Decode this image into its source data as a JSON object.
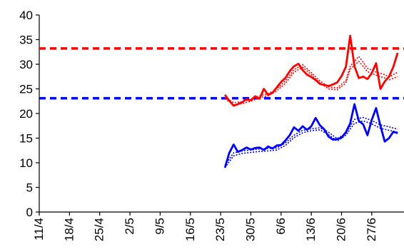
{
  "chart_data": {
    "type": "line",
    "title": "",
    "xlabel": "",
    "ylabel": "",
    "ylim": [
      0,
      40
    ],
    "yticks": [
      0,
      5,
      10,
      15,
      20,
      25,
      30,
      35,
      40
    ],
    "xlim": [
      "2024-04-11",
      "2024-07-03"
    ],
    "xticks": [
      "11/4",
      "18/4",
      "25/4",
      "2/5",
      "9/5",
      "16/5",
      "23/5",
      "30/5",
      "6/6",
      "13/6",
      "20/6",
      "27/6"
    ],
    "xtick_dates": [
      "2024-04-11",
      "2024-04-18",
      "2024-04-25",
      "2024-05-02",
      "2024-05-09",
      "2024-05-16",
      "2024-05-23",
      "2024-05-30",
      "2024-06-06",
      "2024-06-13",
      "2024-06-20",
      "2024-06-27"
    ],
    "grid": false,
    "legend": "none",
    "reference_lines": [
      {
        "y": 33.2,
        "color": "#ff0000",
        "style": "dashed"
      },
      {
        "y": 23.1,
        "color": "#0000ff",
        "style": "dashed"
      }
    ],
    "series": [
      {
        "color": "#ff0000",
        "style": "solid",
        "x": [
          "2024-05-24",
          "2024-05-25",
          "2024-05-26",
          "2024-05-27",
          "2024-05-28",
          "2024-05-29",
          "2024-05-30",
          "2024-05-31",
          "2024-06-01",
          "2024-06-02",
          "2024-06-03",
          "2024-06-04",
          "2024-06-05",
          "2024-06-06",
          "2024-06-07",
          "2024-06-08",
          "2024-06-09",
          "2024-06-10",
          "2024-06-11",
          "2024-06-12",
          "2024-06-13",
          "2024-06-14",
          "2024-06-15",
          "2024-06-16",
          "2024-06-17",
          "2024-06-18",
          "2024-06-19",
          "2024-06-20",
          "2024-06-21",
          "2024-06-22",
          "2024-06-23",
          "2024-06-24",
          "2024-06-25",
          "2024-06-26",
          "2024-06-27",
          "2024-06-28",
          "2024-06-29",
          "2024-06-30",
          "2024-07-01",
          "2024-07-02",
          "2024-07-03"
        ],
        "values": [
          23.8,
          22.6,
          21.6,
          21.9,
          22.3,
          22.9,
          22.7,
          23.5,
          23.0,
          25.0,
          23.8,
          24.2,
          25.3,
          26.4,
          27.2,
          28.6,
          29.6,
          30.1,
          28.8,
          27.9,
          27.4,
          26.8,
          26.0,
          25.8,
          25.6,
          25.9,
          26.3,
          27.6,
          29.5,
          35.8,
          29.6,
          27.2,
          27.5,
          27.0,
          28.2,
          30.2,
          25.0,
          26.5,
          27.5,
          29.5,
          32.3
        ]
      },
      {
        "color": "#ff0000",
        "style": "dotted",
        "x": [
          "2024-05-24",
          "2024-05-26",
          "2024-05-28",
          "2024-05-30",
          "2024-06-01",
          "2024-06-03",
          "2024-06-05",
          "2024-06-07",
          "2024-06-09",
          "2024-06-11",
          "2024-06-13",
          "2024-06-15",
          "2024-06-17",
          "2024-06-19",
          "2024-06-21",
          "2024-06-22",
          "2024-06-24",
          "2024-06-26",
          "2024-06-28",
          "2024-06-30",
          "2024-07-01",
          "2024-07-03"
        ],
        "values": [
          23.3,
          22.2,
          22.4,
          22.9,
          23.6,
          24.0,
          25.0,
          26.6,
          28.9,
          29.9,
          28.3,
          26.6,
          25.4,
          25.2,
          26.7,
          29.6,
          31.6,
          29.2,
          28.4,
          27.9,
          27.4,
          28.4
        ]
      },
      {
        "color": "#ff0000",
        "style": "dotted",
        "x": [
          "2024-05-24",
          "2024-05-26",
          "2024-05-28",
          "2024-05-30",
          "2024-06-01",
          "2024-06-03",
          "2024-06-05",
          "2024-06-07",
          "2024-06-09",
          "2024-06-11",
          "2024-06-13",
          "2024-06-15",
          "2024-06-17",
          "2024-06-19",
          "2024-06-21",
          "2024-06-22",
          "2024-06-24",
          "2024-06-26",
          "2024-06-28",
          "2024-06-30",
          "2024-07-01",
          "2024-07-03"
        ],
        "values": [
          23.0,
          21.8,
          22.0,
          22.5,
          23.2,
          23.6,
          24.6,
          26.1,
          28.4,
          29.4,
          27.9,
          26.2,
          25.0,
          24.8,
          26.2,
          29.0,
          30.6,
          28.5,
          27.8,
          27.2,
          26.8,
          27.5
        ]
      },
      {
        "color": "#0000ff",
        "style": "solid",
        "x": [
          "2024-05-24",
          "2024-05-25",
          "2024-05-26",
          "2024-05-27",
          "2024-05-28",
          "2024-05-29",
          "2024-05-30",
          "2024-05-31",
          "2024-06-01",
          "2024-06-02",
          "2024-06-03",
          "2024-06-04",
          "2024-06-05",
          "2024-06-06",
          "2024-06-07",
          "2024-06-08",
          "2024-06-09",
          "2024-06-10",
          "2024-06-11",
          "2024-06-12",
          "2024-06-13",
          "2024-06-14",
          "2024-06-15",
          "2024-06-16",
          "2024-06-17",
          "2024-06-18",
          "2024-06-19",
          "2024-06-20",
          "2024-06-21",
          "2024-06-22",
          "2024-06-23",
          "2024-06-24",
          "2024-06-25",
          "2024-06-26",
          "2024-06-27",
          "2024-06-28",
          "2024-06-29",
          "2024-06-30",
          "2024-07-01",
          "2024-07-02",
          "2024-07-03"
        ],
        "values": [
          9.0,
          12.0,
          13.7,
          12.2,
          12.6,
          13.1,
          12.7,
          13.0,
          13.1,
          12.6,
          13.3,
          12.9,
          13.5,
          13.6,
          14.5,
          15.6,
          17.2,
          16.5,
          17.4,
          16.7,
          17.4,
          19.1,
          17.6,
          16.8,
          15.3,
          14.7,
          14.8,
          15.1,
          16.2,
          18.0,
          21.9,
          18.5,
          17.8,
          15.6,
          18.7,
          21.1,
          17.5,
          14.3,
          15.0,
          16.3,
          16.0
        ]
      },
      {
        "color": "#0000ff",
        "style": "dotted",
        "x": [
          "2024-05-24",
          "2024-05-26",
          "2024-05-28",
          "2024-05-30",
          "2024-06-01",
          "2024-06-03",
          "2024-06-05",
          "2024-06-07",
          "2024-06-09",
          "2024-06-11",
          "2024-06-13",
          "2024-06-15",
          "2024-06-17",
          "2024-06-19",
          "2024-06-21",
          "2024-06-23",
          "2024-06-25",
          "2024-06-27",
          "2024-06-29",
          "2024-07-01",
          "2024-07-03"
        ],
        "values": [
          9.5,
          12.0,
          12.4,
          12.6,
          12.8,
          12.9,
          13.0,
          14.0,
          15.6,
          16.6,
          16.9,
          17.1,
          16.2,
          14.9,
          16.0,
          18.8,
          19.2,
          18.6,
          17.7,
          17.3,
          16.8
        ]
      },
      {
        "color": "#0000ff",
        "style": "dotted",
        "x": [
          "2024-05-24",
          "2024-05-26",
          "2024-05-28",
          "2024-05-30",
          "2024-06-01",
          "2024-06-03",
          "2024-06-05",
          "2024-06-07",
          "2024-06-09",
          "2024-06-11",
          "2024-06-13",
          "2024-06-15",
          "2024-06-17",
          "2024-06-19",
          "2024-06-21",
          "2024-06-23",
          "2024-06-25",
          "2024-06-27",
          "2024-06-29",
          "2024-07-01",
          "2024-07-03"
        ],
        "values": [
          9.0,
          11.4,
          11.9,
          12.1,
          12.3,
          12.4,
          12.6,
          13.5,
          15.1,
          16.1,
          16.5,
          16.7,
          15.7,
          14.4,
          15.6,
          18.0,
          18.5,
          17.9,
          17.0,
          16.6,
          16.2
        ]
      }
    ]
  }
}
